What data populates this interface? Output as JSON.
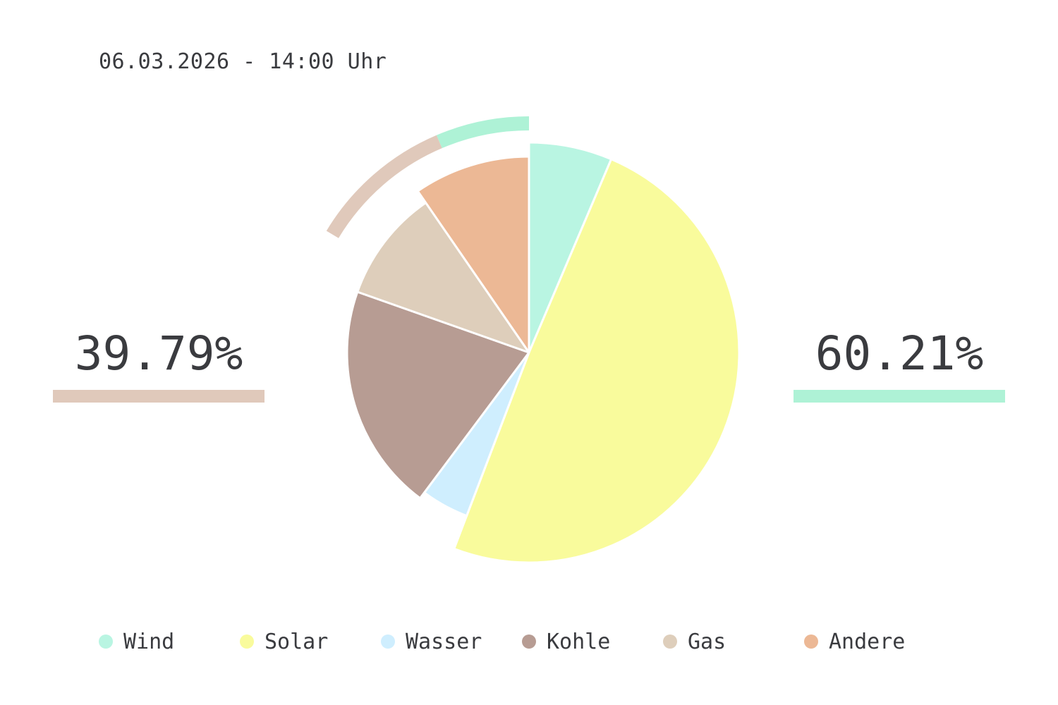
{
  "header": {
    "timestamp": "06.03.2026 - 14:00 Uhr"
  },
  "summary": {
    "left": {
      "value": "39.79%",
      "color": "#e0c9bb"
    },
    "right": {
      "value": "60.21%",
      "color": "#aef2d6"
    }
  },
  "chart_data": {
    "type": "pie",
    "unit": "%",
    "start": "12 o'clock",
    "direction": "clockwise",
    "slices": [
      {
        "label": "Wind",
        "value": 6.4,
        "color": "#b9f5e2"
      },
      {
        "label": "Solar",
        "value": 49.4,
        "color": "#f9fb9c"
      },
      {
        "label": "Wasser",
        "value": 4.41,
        "color": "#cfeefe"
      },
      {
        "label": "Kohle",
        "value": 20.2,
        "color": "#b79c93"
      },
      {
        "label": "Gas",
        "value": 9.99,
        "color": "#decebb"
      },
      {
        "label": "Andere",
        "value": 9.6,
        "color": "#ecb895"
      }
    ],
    "outer_arc": [
      {
        "value": 6.4,
        "color": "#aef2d6"
      },
      {
        "value": 9.99,
        "color": "#e0c9bb"
      }
    ],
    "legend": {
      "position": "bottom",
      "items": [
        "Wind",
        "Solar",
        "Wasser",
        "Kohle",
        "Gas",
        "Andere"
      ]
    }
  }
}
